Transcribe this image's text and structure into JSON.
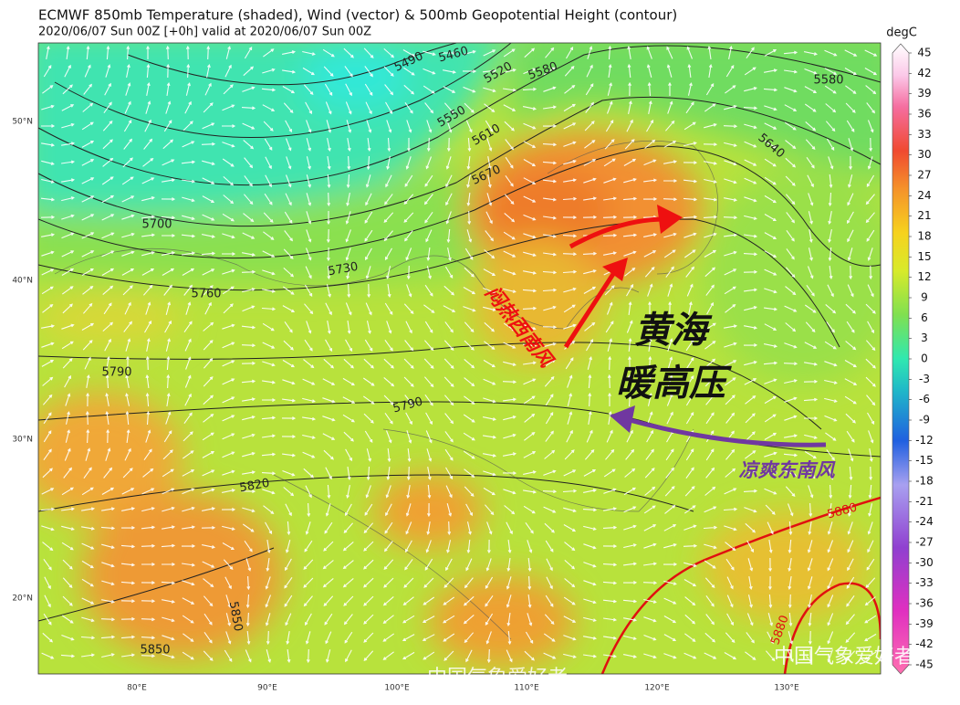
{
  "header": {
    "title": "ECMWF 850mb Temperature (shaded), Wind (vector) & 500mb Geopotential Height (contour)",
    "subtitle": "2020/06/07 Sun 00Z [+0h] valid at 2020/06/07 Sun 00Z"
  },
  "colorbar": {
    "unit": "degC",
    "lim": [
      -45,
      45
    ],
    "ticks": [
      45,
      42,
      39,
      36,
      33,
      30,
      27,
      24,
      21,
      18,
      15,
      12,
      9,
      6,
      3,
      0,
      -3,
      -6,
      -9,
      -12,
      -15,
      -18,
      -21,
      -24,
      -27,
      -30,
      -33,
      -36,
      -39,
      -42,
      -45
    ]
  },
  "lat_labels": [
    "50°N",
    "40°N",
    "30°N",
    "20°N"
  ],
  "lon_labels": [
    "80°E",
    "90°E",
    "100°E",
    "110°E",
    "120°E",
    "130°E"
  ],
  "contour_labels": [
    5460,
    5490,
    5520,
    5580,
    5550,
    5610,
    5580,
    5640,
    5670,
    5700,
    5730,
    5760,
    5790,
    5790,
    5820,
    5850,
    5850,
    5880,
    5880
  ],
  "annotations": {
    "high": [
      "黄海",
      "暖高压"
    ],
    "southwest_wind": "闷热西南风",
    "southeast_wind": "凉爽东南风"
  },
  "watermarks": [
    "中国气象爱好者",
    "中国气象爱好者"
  ]
}
